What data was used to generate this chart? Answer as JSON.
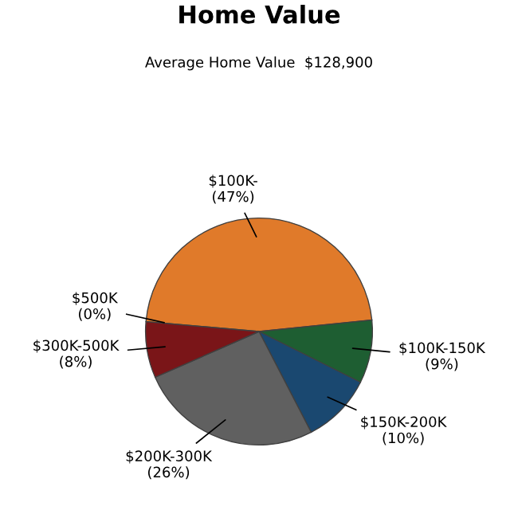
{
  "chart_data": {
    "type": "pie",
    "title": "Home Value",
    "subtitle": "Average Home Value  $128,900",
    "categories": [
      "$100K-",
      "$100K-150K",
      "$150K-200K",
      "$200K-300K",
      "$300K-500K",
      "$500K"
    ],
    "values": [
      47,
      9,
      10,
      26,
      8,
      0
    ],
    "value_labels": [
      "(47%)",
      "(9%)",
      "(10%)",
      "(26%)",
      "(8%)",
      "(0%)"
    ],
    "colors": [
      "#e07a2a",
      "#1e5e32",
      "#1a4870",
      "#606060",
      "#7a1518",
      "#c0c0c0"
    ]
  }
}
